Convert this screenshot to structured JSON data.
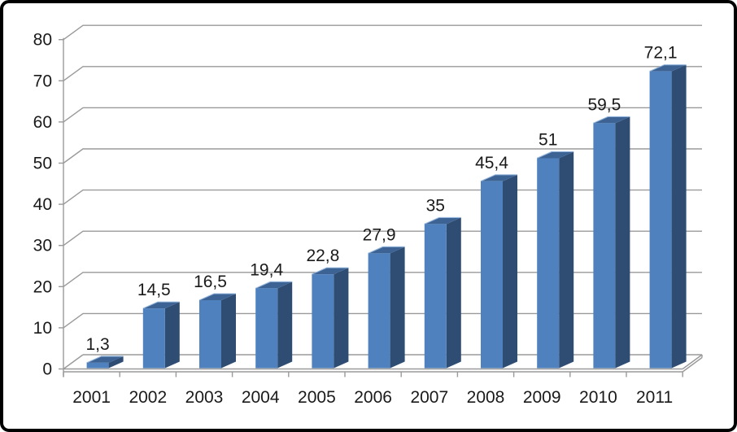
{
  "frame": {
    "border_color": "#000000",
    "background": "#ffffff"
  },
  "chart_data": {
    "type": "bar",
    "style": "3d-column",
    "title": "",
    "xlabel": "",
    "ylabel": "",
    "categories": [
      "2001",
      "2002",
      "2003",
      "2004",
      "2005",
      "2006",
      "2007",
      "2008",
      "2009",
      "2010",
      "2011"
    ],
    "values": [
      1.3,
      14.5,
      16.5,
      19.4,
      22.8,
      27.9,
      35,
      45.4,
      51,
      59.5,
      72.1
    ],
    "value_labels": [
      "1,3",
      "14,5",
      "16,5",
      "19,4",
      "22,8",
      "27,9",
      "35",
      "45,4",
      "51",
      "59,5",
      "72,1"
    ],
    "y_ticks": [
      0,
      10,
      20,
      30,
      40,
      50,
      60,
      70,
      80
    ],
    "ylim": [
      0,
      80
    ],
    "grid": "on",
    "legend": "none",
    "decimal_separator": ",",
    "colors": {
      "bar_front": "#4E81BD",
      "bar_top": "#3C6394",
      "bar_side": "#2F4D73",
      "bar_top_highlight": "#95B6DC",
      "gridline": "#9A9A9A",
      "axis": "#9A9A9A",
      "label_text": "#1A1A1A"
    }
  }
}
